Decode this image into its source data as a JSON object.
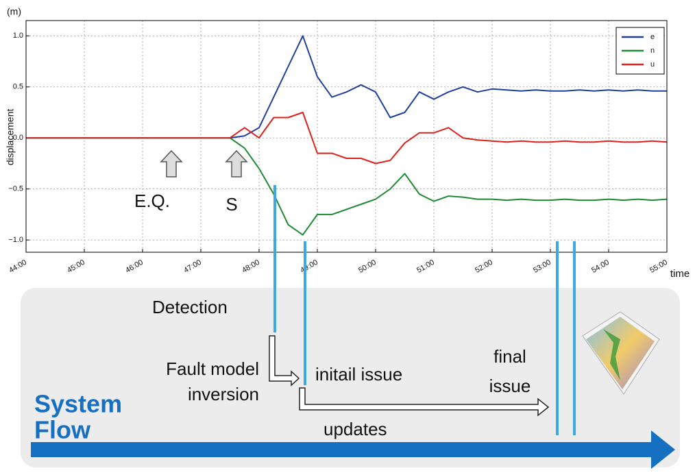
{
  "chart_data": {
    "type": "line",
    "y_unit": "(m)",
    "ylabel": "displacement",
    "xlabel": "time",
    "x": [
      44,
      44.25,
      44.5,
      44.75,
      45,
      45.25,
      45.5,
      45.75,
      46,
      46.25,
      46.5,
      46.75,
      47,
      47.25,
      47.5,
      47.75,
      48,
      48.25,
      48.5,
      48.75,
      49,
      49.25,
      49.5,
      49.75,
      50,
      50.25,
      50.5,
      50.75,
      51,
      51.25,
      51.5,
      51.75,
      52,
      52.25,
      52.5,
      52.75,
      53,
      53.25,
      53.5,
      53.75,
      54,
      54.25,
      54.5,
      54.75,
      55
    ],
    "series": [
      {
        "name": "e",
        "color": "#1f3f9e",
        "values": [
          0,
          0,
          0,
          0,
          0,
          0,
          0,
          0,
          0,
          0,
          0,
          0,
          0,
          0,
          0,
          0.02,
          0.1,
          0.4,
          0.7,
          1.0,
          0.6,
          0.4,
          0.45,
          0.52,
          0.45,
          0.2,
          0.25,
          0.45,
          0.38,
          0.45,
          0.5,
          0.45,
          0.48,
          0.47,
          0.46,
          0.47,
          0.46,
          0.46,
          0.47,
          0.46,
          0.47,
          0.46,
          0.47,
          0.46,
          0.46
        ]
      },
      {
        "name": "n",
        "color": "#1e8a33",
        "values": [
          0,
          0,
          0,
          0,
          0,
          0,
          0,
          0,
          0,
          0,
          0,
          0,
          0,
          0,
          0,
          -0.1,
          -0.3,
          -0.55,
          -0.85,
          -0.95,
          -0.75,
          -0.75,
          -0.7,
          -0.65,
          -0.6,
          -0.5,
          -0.35,
          -0.55,
          -0.62,
          -0.57,
          -0.58,
          -0.6,
          -0.6,
          -0.61,
          -0.6,
          -0.61,
          -0.61,
          -0.6,
          -0.61,
          -0.61,
          -0.6,
          -0.61,
          -0.6,
          -0.61,
          -0.6
        ]
      },
      {
        "name": "u",
        "color": "#e0201b",
        "values": [
          0,
          0,
          0,
          0,
          0,
          0,
          0,
          0,
          0,
          0,
          0,
          0,
          0,
          0,
          0,
          0.1,
          0.0,
          0.2,
          0.2,
          0.25,
          -0.15,
          -0.15,
          -0.2,
          -0.2,
          -0.25,
          -0.22,
          -0.05,
          0.05,
          0.05,
          0.1,
          0.0,
          -0.02,
          -0.03,
          -0.04,
          -0.03,
          -0.04,
          -0.04,
          -0.03,
          -0.04,
          -0.04,
          -0.03,
          -0.04,
          -0.04,
          -0.03,
          -0.04
        ]
      }
    ],
    "xlim": [
      44,
      55
    ],
    "xticks": [
      {
        "value": 44,
        "label": "44:00"
      },
      {
        "value": 45,
        "label": "45:00"
      },
      {
        "value": 46,
        "label": "46:00"
      },
      {
        "value": 47,
        "label": "47:00"
      },
      {
        "value": 48,
        "label": "48:00"
      },
      {
        "value": 49,
        "label": "49:00"
      },
      {
        "value": 50,
        "label": "50:00"
      },
      {
        "value": 51,
        "label": "51:00"
      },
      {
        "value": 52,
        "label": "52:00"
      },
      {
        "value": 53,
        "label": "53:00"
      },
      {
        "value": 54,
        "label": "54:00"
      },
      {
        "value": 55,
        "label": "55:00"
      }
    ],
    "ylim": [
      -1.12,
      1.15
    ],
    "yticks": [
      {
        "value": -1,
        "label": "−1.0"
      },
      {
        "value": -0.5,
        "label": "−0.5"
      },
      {
        "value": 0,
        "label": "0.0"
      },
      {
        "value": 0.5,
        "label": "0.5"
      },
      {
        "value": 1,
        "label": "1.0"
      }
    ],
    "grid": true,
    "legend": "upper right",
    "markers": [
      "E.Q.",
      "S"
    ],
    "flow": {
      "detection": "Detection",
      "inversion": [
        "Fault model",
        "inversion"
      ],
      "initial": "initail issue",
      "final": [
        "final",
        "issue"
      ],
      "updates": "updates",
      "system": [
        "System",
        "Flow"
      ]
    }
  }
}
